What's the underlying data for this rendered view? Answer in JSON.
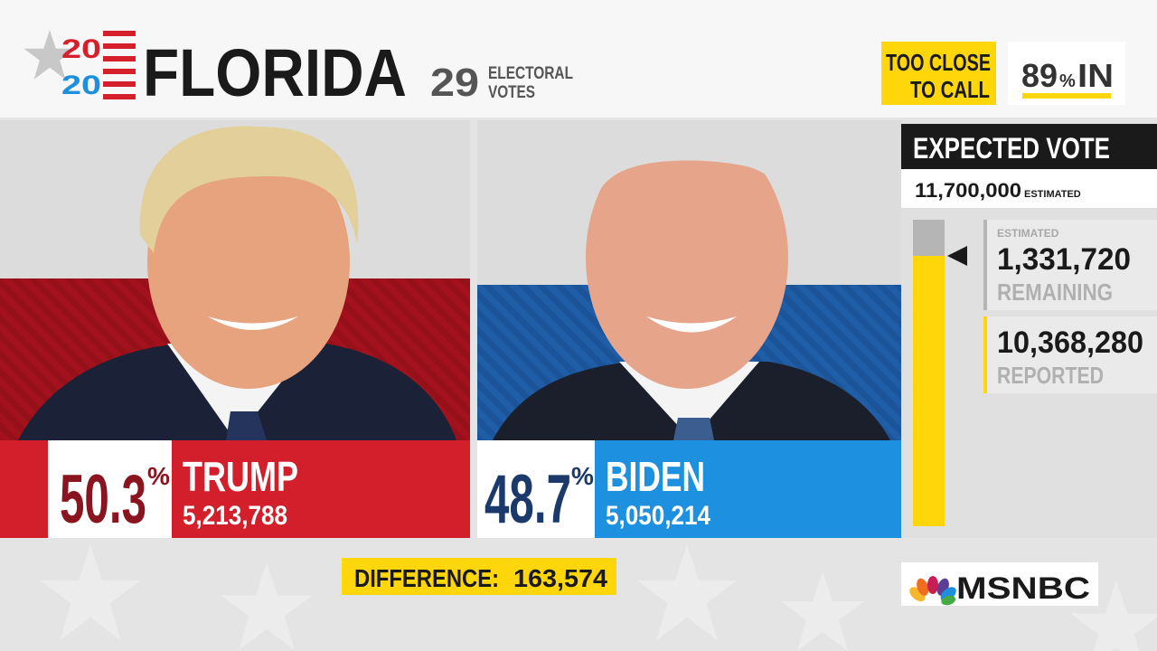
{
  "header": {
    "logo_top": "20",
    "logo_bottom": "20",
    "state": "FLORIDA",
    "electoral_votes": "29",
    "electoral_label_1": "ELECTORAL",
    "electoral_label_2": "VOTES",
    "status_1": "TOO CLOSE",
    "status_2": "TO CALL",
    "percent_in_value": "89",
    "percent_in_sign": "%",
    "percent_in_label": "IN"
  },
  "candidates": [
    {
      "pct": "50.3",
      "pct_sign": "%",
      "name": "TRUMP",
      "votes": "5,213,788"
    },
    {
      "pct": "48.7",
      "pct_sign": "%",
      "name": "BIDEN",
      "votes": "5,050,214"
    }
  ],
  "expected_vote": {
    "title": "EXPECTED VOTE",
    "total": "11,700,000",
    "total_note": "ESTIMATED",
    "remaining_note": "ESTIMATED",
    "remaining_value": "1,331,720",
    "remaining_label": "REMAINING",
    "reported_value": "10,368,280",
    "reported_label": "REPORTED"
  },
  "difference": {
    "label": "DIFFERENCE:",
    "value": "163,574"
  },
  "network": "MSNBC"
}
